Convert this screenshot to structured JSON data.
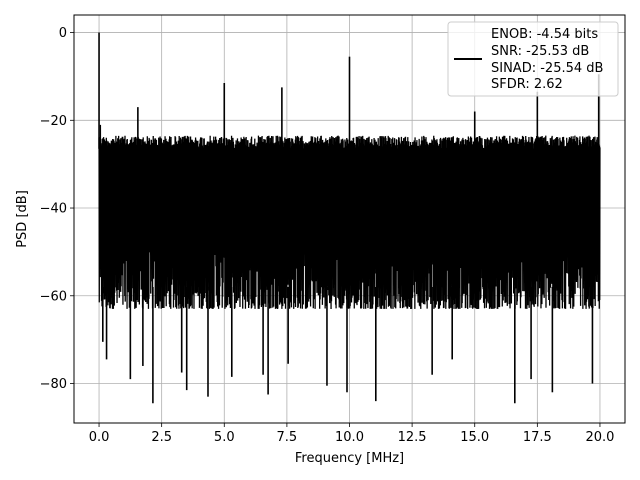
{
  "chart_data": {
    "type": "line",
    "title": "",
    "xlabel": "Frequency [MHz]",
    "ylabel": "PSD [dB]",
    "xlim": [
      -1.0,
      21.0
    ],
    "ylim": [
      -89.0,
      4.0
    ],
    "xticks": [
      0.0,
      2.5,
      5.0,
      7.5,
      10.0,
      12.5,
      15.0,
      17.5,
      20.0
    ],
    "xtick_labels": [
      "0.0",
      "2.5",
      "5.0",
      "7.5",
      "10.0",
      "12.5",
      "15.0",
      "17.5",
      "20.0"
    ],
    "yticks": [
      0,
      -20,
      -40,
      -60,
      -80
    ],
    "ytick_labels": [
      "0",
      "−20",
      "−40",
      "−60",
      "−80"
    ],
    "grid": true,
    "legend_position": "upper-right",
    "legend_lines": [
      "ENOB: -4.54 bits",
      "SNR: -25.53 dB",
      "SINAD: -25.54 dB",
      "SFDR: 2.62"
    ],
    "series": [
      {
        "color": "#000000",
        "noise_floor_upper_db": -23.5,
        "noise_floor_lower_db": -63.0,
        "spurs": [
          {
            "x": 0.0,
            "y": 0.0
          },
          {
            "x": 1.55,
            "y": -17.0
          },
          {
            "x": 5.0,
            "y": -11.5
          },
          {
            "x": 7.3,
            "y": -12.5
          },
          {
            "x": 10.0,
            "y": -5.5
          },
          {
            "x": 15.0,
            "y": -18.0
          },
          {
            "x": 17.5,
            "y": -13.5
          },
          {
            "x": 19.95,
            "y": -9.5
          }
        ],
        "deep_nulls": [
          {
            "x": 0.15,
            "y": -70.5
          },
          {
            "x": 0.3,
            "y": -74.5
          },
          {
            "x": 1.25,
            "y": -79.0
          },
          {
            "x": 1.75,
            "y": -76.0
          },
          {
            "x": 2.15,
            "y": -84.5
          },
          {
            "x": 3.3,
            "y": -77.5
          },
          {
            "x": 3.5,
            "y": -81.5
          },
          {
            "x": 4.35,
            "y": -83.0
          },
          {
            "x": 5.3,
            "y": -78.5
          },
          {
            "x": 6.55,
            "y": -78.0
          },
          {
            "x": 6.75,
            "y": -82.5
          },
          {
            "x": 7.55,
            "y": -75.5
          },
          {
            "x": 9.1,
            "y": -80.5
          },
          {
            "x": 9.9,
            "y": -82.0
          },
          {
            "x": 11.05,
            "y": -84.0
          },
          {
            "x": 13.3,
            "y": -78.0
          },
          {
            "x": 14.1,
            "y": -74.5
          },
          {
            "x": 16.6,
            "y": -84.5
          },
          {
            "x": 17.25,
            "y": -79.0
          },
          {
            "x": 18.1,
            "y": -82.0
          },
          {
            "x": 19.7,
            "y": -80.0
          }
        ]
      }
    ]
  }
}
